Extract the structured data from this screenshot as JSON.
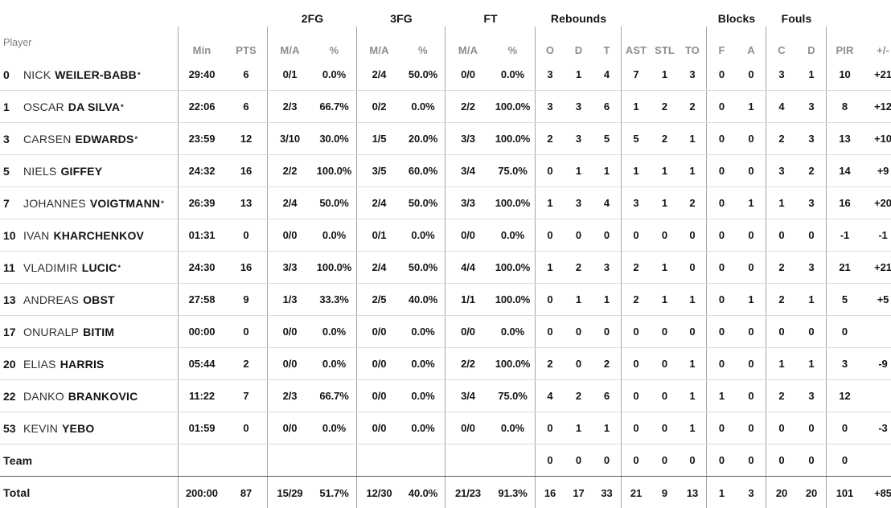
{
  "table": {
    "player_header": "Player",
    "groups": {
      "fg2": "2FG",
      "fg3": "3FG",
      "ft": "FT",
      "rebounds": "Rebounds",
      "blocks": "Blocks",
      "fouls": "Fouls"
    },
    "columns": {
      "min": "Min",
      "pts": "PTS",
      "fg2ma": "M/A",
      "fg2pct": "%",
      "fg3ma": "M/A",
      "fg3pct": "%",
      "ftma": "M/A",
      "ftpct": "%",
      "or": "O",
      "dr": "D",
      "tr": "T",
      "ast": "AST",
      "stl": "STL",
      "to": "TO",
      "bf": "F",
      "ba": "A",
      "fc": "C",
      "fd": "D",
      "pir": "PIR",
      "pm": "+/-"
    },
    "starter_mark": "*",
    "rows": [
      {
        "num": "0",
        "first": "NICK",
        "last": "WEILER-BABB",
        "starter": true,
        "min": "29:40",
        "pts": "6",
        "fg2ma": "0/1",
        "fg2pct": "0.0%",
        "fg3ma": "2/4",
        "fg3pct": "50.0%",
        "ftma": "0/0",
        "ftpct": "0.0%",
        "or": "3",
        "dr": "1",
        "tr": "4",
        "ast": "7",
        "stl": "1",
        "to": "3",
        "bf": "0",
        "ba": "0",
        "fc": "3",
        "fd": "1",
        "pir": "10",
        "pm": "+21"
      },
      {
        "num": "1",
        "first": "OSCAR",
        "last": "DA SILVA",
        "starter": true,
        "min": "22:06",
        "pts": "6",
        "fg2ma": "2/3",
        "fg2pct": "66.7%",
        "fg3ma": "0/2",
        "fg3pct": "0.0%",
        "ftma": "2/2",
        "ftpct": "100.0%",
        "or": "3",
        "dr": "3",
        "tr": "6",
        "ast": "1",
        "stl": "2",
        "to": "2",
        "bf": "0",
        "ba": "1",
        "fc": "4",
        "fd": "3",
        "pir": "8",
        "pm": "+12"
      },
      {
        "num": "3",
        "first": "CARSEN",
        "last": "EDWARDS",
        "starter": true,
        "min": "23:59",
        "pts": "12",
        "fg2ma": "3/10",
        "fg2pct": "30.0%",
        "fg3ma": "1/5",
        "fg3pct": "20.0%",
        "ftma": "3/3",
        "ftpct": "100.0%",
        "or": "2",
        "dr": "3",
        "tr": "5",
        "ast": "5",
        "stl": "2",
        "to": "1",
        "bf": "0",
        "ba": "0",
        "fc": "2",
        "fd": "3",
        "pir": "13",
        "pm": "+10"
      },
      {
        "num": "5",
        "first": "NIELS",
        "last": "GIFFEY",
        "starter": false,
        "min": "24:32",
        "pts": "16",
        "fg2ma": "2/2",
        "fg2pct": "100.0%",
        "fg3ma": "3/5",
        "fg3pct": "60.0%",
        "ftma": "3/4",
        "ftpct": "75.0%",
        "or": "0",
        "dr": "1",
        "tr": "1",
        "ast": "1",
        "stl": "1",
        "to": "1",
        "bf": "0",
        "ba": "0",
        "fc": "3",
        "fd": "2",
        "pir": "14",
        "pm": "+9"
      },
      {
        "num": "7",
        "first": "JOHANNES",
        "last": "VOIGTMANN",
        "starter": true,
        "min": "26:39",
        "pts": "13",
        "fg2ma": "2/4",
        "fg2pct": "50.0%",
        "fg3ma": "2/4",
        "fg3pct": "50.0%",
        "ftma": "3/3",
        "ftpct": "100.0%",
        "or": "1",
        "dr": "3",
        "tr": "4",
        "ast": "3",
        "stl": "1",
        "to": "2",
        "bf": "0",
        "ba": "1",
        "fc": "1",
        "fd": "3",
        "pir": "16",
        "pm": "+20"
      },
      {
        "num": "10",
        "first": "IVAN",
        "last": "KHARCHENKOV",
        "starter": false,
        "min": "01:31",
        "pts": "0",
        "fg2ma": "0/0",
        "fg2pct": "0.0%",
        "fg3ma": "0/1",
        "fg3pct": "0.0%",
        "ftma": "0/0",
        "ftpct": "0.0%",
        "or": "0",
        "dr": "0",
        "tr": "0",
        "ast": "0",
        "stl": "0",
        "to": "0",
        "bf": "0",
        "ba": "0",
        "fc": "0",
        "fd": "0",
        "pir": "-1",
        "pm": "-1"
      },
      {
        "num": "11",
        "first": "VLADIMIR",
        "last": "LUCIC",
        "starter": true,
        "min": "24:30",
        "pts": "16",
        "fg2ma": "3/3",
        "fg2pct": "100.0%",
        "fg3ma": "2/4",
        "fg3pct": "50.0%",
        "ftma": "4/4",
        "ftpct": "100.0%",
        "or": "1",
        "dr": "2",
        "tr": "3",
        "ast": "2",
        "stl": "1",
        "to": "0",
        "bf": "0",
        "ba": "0",
        "fc": "2",
        "fd": "3",
        "pir": "21",
        "pm": "+21"
      },
      {
        "num": "13",
        "first": "ANDREAS",
        "last": "OBST",
        "starter": false,
        "min": "27:58",
        "pts": "9",
        "fg2ma": "1/3",
        "fg2pct": "33.3%",
        "fg3ma": "2/5",
        "fg3pct": "40.0%",
        "ftma": "1/1",
        "ftpct": "100.0%",
        "or": "0",
        "dr": "1",
        "tr": "1",
        "ast": "2",
        "stl": "1",
        "to": "1",
        "bf": "0",
        "ba": "1",
        "fc": "2",
        "fd": "1",
        "pir": "5",
        "pm": "+5"
      },
      {
        "num": "17",
        "first": "ONURALP",
        "last": "BITIM",
        "starter": false,
        "min": "00:00",
        "pts": "0",
        "fg2ma": "0/0",
        "fg2pct": "0.0%",
        "fg3ma": "0/0",
        "fg3pct": "0.0%",
        "ftma": "0/0",
        "ftpct": "0.0%",
        "or": "0",
        "dr": "0",
        "tr": "0",
        "ast": "0",
        "stl": "0",
        "to": "0",
        "bf": "0",
        "ba": "0",
        "fc": "0",
        "fd": "0",
        "pir": "0",
        "pm": ""
      },
      {
        "num": "20",
        "first": "ELIAS",
        "last": "HARRIS",
        "starter": false,
        "min": "05:44",
        "pts": "2",
        "fg2ma": "0/0",
        "fg2pct": "0.0%",
        "fg3ma": "0/0",
        "fg3pct": "0.0%",
        "ftma": "2/2",
        "ftpct": "100.0%",
        "or": "2",
        "dr": "0",
        "tr": "2",
        "ast": "0",
        "stl": "0",
        "to": "1",
        "bf": "0",
        "ba": "0",
        "fc": "1",
        "fd": "1",
        "pir": "3",
        "pm": "-9"
      },
      {
        "num": "22",
        "first": "DANKO",
        "last": "BRANKOVIC",
        "starter": false,
        "min": "11:22",
        "pts": "7",
        "fg2ma": "2/3",
        "fg2pct": "66.7%",
        "fg3ma": "0/0",
        "fg3pct": "0.0%",
        "ftma": "3/4",
        "ftpct": "75.0%",
        "or": "4",
        "dr": "2",
        "tr": "6",
        "ast": "0",
        "stl": "0",
        "to": "1",
        "bf": "1",
        "ba": "0",
        "fc": "2",
        "fd": "3",
        "pir": "12",
        "pm": ""
      },
      {
        "num": "53",
        "first": "KEVIN",
        "last": "YEBO",
        "starter": false,
        "min": "01:59",
        "pts": "0",
        "fg2ma": "0/0",
        "fg2pct": "0.0%",
        "fg3ma": "0/0",
        "fg3pct": "0.0%",
        "ftma": "0/0",
        "ftpct": "0.0%",
        "or": "0",
        "dr": "1",
        "tr": "1",
        "ast": "0",
        "stl": "0",
        "to": "1",
        "bf": "0",
        "ba": "0",
        "fc": "0",
        "fd": "0",
        "pir": "0",
        "pm": "-3"
      }
    ],
    "team_row": {
      "label": "Team",
      "min": "",
      "pts": "",
      "fg2ma": "",
      "fg2pct": "",
      "fg3ma": "",
      "fg3pct": "",
      "ftma": "",
      "ftpct": "",
      "or": "0",
      "dr": "0",
      "tr": "0",
      "ast": "0",
      "stl": "0",
      "to": "0",
      "bf": "0",
      "ba": "0",
      "fc": "0",
      "fd": "0",
      "pir": "0",
      "pm": ""
    },
    "total_row": {
      "label": "Total",
      "min": "200:00",
      "pts": "87",
      "fg2ma": "15/29",
      "fg2pct": "51.7%",
      "fg3ma": "12/30",
      "fg3pct": "40.0%",
      "ftma": "21/23",
      "ftpct": "91.3%",
      "or": "16",
      "dr": "17",
      "tr": "33",
      "ast": "21",
      "stl": "9",
      "to": "13",
      "bf": "1",
      "ba": "3",
      "fc": "20",
      "fd": "20",
      "pir": "101",
      "pm": "+85"
    }
  },
  "colors": {
    "header_text": "#8d8d8d",
    "data_text": "#141414",
    "grid_line": "#a5a5a5",
    "row_line": "#dbdbdb",
    "total_line": "#555555",
    "background": "#ffffff"
  }
}
